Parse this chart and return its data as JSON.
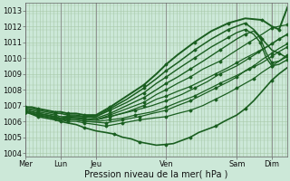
{
  "title": "",
  "xlabel": "Pression niveau de la mer( hPa )",
  "ylabel": "",
  "bg_color": "#cce8d8",
  "grid_color": "#a8c8a8",
  "line_color": "#1a5e20",
  "marker_color": "#1a5e20",
  "ylim": [
    1003.8,
    1013.5
  ],
  "xlim": [
    0.0,
    6.2
  ],
  "yticks": [
    1004,
    1005,
    1006,
    1007,
    1008,
    1009,
    1010,
    1011,
    1012,
    1013
  ],
  "xtick_positions": [
    0.0,
    0.83,
    1.67,
    3.33,
    5.0,
    5.83
  ],
  "xtick_labels": [
    "Mer",
    "Lun",
    "Jeu",
    "Ven",
    "Sam",
    "Dim"
  ],
  "lines": [
    {
      "x": [
        0.0,
        0.1,
        0.2,
        0.3,
        0.5,
        0.7,
        0.83,
        1.0,
        1.2,
        1.4,
        1.67,
        1.9,
        2.1,
        2.3,
        2.5,
        2.7,
        2.9,
        3.1,
        3.33,
        3.5,
        3.7,
        3.9,
        4.1,
        4.3,
        4.5,
        4.7,
        5.0,
        5.2,
        5.4,
        5.6,
        5.83,
        6.0,
        6.2
      ],
      "y": [
        1006.6,
        1006.5,
        1006.4,
        1006.3,
        1006.2,
        1006.1,
        1006.0,
        1005.9,
        1005.8,
        1005.6,
        1005.4,
        1005.3,
        1005.2,
        1005.0,
        1004.9,
        1004.7,
        1004.6,
        1004.5,
        1004.55,
        1004.6,
        1004.8,
        1005.0,
        1005.3,
        1005.5,
        1005.7,
        1006.0,
        1006.4,
        1006.8,
        1007.3,
        1007.9,
        1008.6,
        1009.0,
        1009.4
      ],
      "lw": 1.2
    },
    {
      "x": [
        0.0,
        0.15,
        0.3,
        0.5,
        0.7,
        0.83,
        1.0,
        1.2,
        1.4,
        1.67,
        1.9,
        2.1,
        2.3,
        2.5,
        2.7,
        3.0,
        3.33,
        3.6,
        3.9,
        4.2,
        4.5,
        4.8,
        5.0,
        5.2,
        5.4,
        5.6,
        5.83,
        6.0,
        6.2
      ],
      "y": [
        1006.6,
        1006.5,
        1006.4,
        1006.3,
        1006.2,
        1006.1,
        1006.0,
        1006.0,
        1005.9,
        1005.8,
        1005.7,
        1005.8,
        1005.9,
        1006.0,
        1006.1,
        1006.2,
        1006.3,
        1006.5,
        1006.7,
        1007.0,
        1007.4,
        1007.8,
        1008.1,
        1008.4,
        1008.7,
        1009.1,
        1009.5,
        1009.8,
        1010.1
      ],
      "lw": 0.9
    },
    {
      "x": [
        0.0,
        0.15,
        0.3,
        0.5,
        0.7,
        0.83,
        1.0,
        1.2,
        1.4,
        1.67,
        1.9,
        2.1,
        2.3,
        2.5,
        2.7,
        3.0,
        3.33,
        3.6,
        3.9,
        4.2,
        4.5,
        4.8,
        5.0,
        5.2,
        5.4,
        5.6,
        5.83,
        6.0,
        6.2
      ],
      "y": [
        1006.6,
        1006.5,
        1006.4,
        1006.3,
        1006.2,
        1006.1,
        1006.1,
        1006.1,
        1006.0,
        1005.95,
        1005.9,
        1006.0,
        1006.1,
        1006.2,
        1006.3,
        1006.5,
        1006.7,
        1007.0,
        1007.3,
        1007.7,
        1008.1,
        1008.5,
        1008.8,
        1009.2,
        1009.5,
        1009.9,
        1010.3,
        1010.6,
        1010.9
      ],
      "lw": 0.9
    },
    {
      "x": [
        0.0,
        0.15,
        0.3,
        0.5,
        0.7,
        0.83,
        1.0,
        1.2,
        1.4,
        1.67,
        2.0,
        2.3,
        2.6,
        3.0,
        3.33,
        3.7,
        4.0,
        4.3,
        4.6,
        5.0,
        5.3,
        5.6,
        5.83,
        6.0,
        6.2
      ],
      "y": [
        1006.6,
        1006.5,
        1006.4,
        1006.3,
        1006.2,
        1006.1,
        1006.1,
        1006.1,
        1006.0,
        1006.0,
        1006.1,
        1006.2,
        1006.4,
        1006.6,
        1006.9,
        1007.3,
        1007.6,
        1008.0,
        1008.4,
        1008.9,
        1009.3,
        1009.7,
        1010.1,
        1010.4,
        1010.7
      ],
      "lw": 0.9
    },
    {
      "x": [
        0.0,
        0.15,
        0.3,
        0.5,
        0.7,
        0.83,
        1.0,
        1.2,
        1.4,
        1.67,
        2.0,
        2.3,
        2.6,
        3.0,
        3.33,
        3.7,
        4.0,
        4.3,
        4.6,
        5.0,
        5.3,
        5.6,
        5.83,
        6.0,
        6.2
      ],
      "y": [
        1006.6,
        1006.5,
        1006.4,
        1006.3,
        1006.2,
        1006.1,
        1006.2,
        1006.2,
        1006.1,
        1006.1,
        1006.3,
        1006.5,
        1006.7,
        1007.0,
        1007.3,
        1007.7,
        1008.1,
        1008.5,
        1009.0,
        1009.5,
        1010.0,
        1010.5,
        1010.9,
        1011.2,
        1011.5
      ],
      "lw": 0.9
    },
    {
      "x": [
        0.0,
        0.15,
        0.3,
        0.5,
        0.7,
        0.83,
        1.0,
        1.2,
        1.4,
        1.67,
        2.0,
        2.4,
        2.8,
        3.1,
        3.33,
        3.6,
        3.9,
        4.2,
        4.5,
        4.8,
        5.0,
        5.2,
        5.5,
        5.83,
        6.0,
        6.2
      ],
      "y": [
        1006.7,
        1006.6,
        1006.5,
        1006.4,
        1006.3,
        1006.2,
        1006.2,
        1006.2,
        1006.1,
        1006.1,
        1006.3,
        1006.6,
        1007.0,
        1007.4,
        1007.6,
        1007.9,
        1008.2,
        1008.6,
        1009.0,
        1009.4,
        1009.7,
        1010.0,
        1010.4,
        1010.9,
        1011.2,
        1011.5
      ],
      "lw": 0.9
    },
    {
      "x": [
        0.0,
        0.15,
        0.3,
        0.5,
        0.7,
        0.83,
        1.0,
        1.2,
        1.4,
        1.67,
        2.0,
        2.4,
        2.8,
        3.1,
        3.33,
        3.6,
        3.9,
        4.2,
        4.6,
        5.0,
        5.3,
        5.6,
        5.83,
        6.0,
        6.2
      ],
      "y": [
        1006.7,
        1006.6,
        1006.5,
        1006.4,
        1006.3,
        1006.2,
        1006.3,
        1006.2,
        1006.2,
        1006.1,
        1006.4,
        1006.8,
        1007.2,
        1007.7,
        1008.0,
        1008.4,
        1008.8,
        1009.3,
        1009.8,
        1010.5,
        1011.0,
        1011.5,
        1011.9,
        1012.0,
        1012.1
      ],
      "lw": 0.9
    },
    {
      "x": [
        0.0,
        0.15,
        0.3,
        0.5,
        0.7,
        0.83,
        1.0,
        1.2,
        1.4,
        1.67,
        2.0,
        2.4,
        2.8,
        3.1,
        3.33,
        3.6,
        3.9,
        4.2,
        4.6,
        5.0,
        5.2,
        5.4,
        5.55,
        5.7,
        5.83,
        6.0,
        6.2
      ],
      "y": [
        1006.7,
        1006.6,
        1006.5,
        1006.4,
        1006.3,
        1006.2,
        1006.3,
        1006.3,
        1006.3,
        1006.2,
        1006.5,
        1007.0,
        1007.5,
        1008.0,
        1008.4,
        1008.8,
        1009.3,
        1009.8,
        1010.5,
        1011.2,
        1011.5,
        1011.7,
        1011.3,
        1010.3,
        1009.7,
        1009.8,
        1010.2
      ],
      "lw": 1.0
    },
    {
      "x": [
        0.0,
        0.15,
        0.3,
        0.5,
        0.7,
        0.83,
        1.0,
        1.2,
        1.4,
        1.67,
        2.0,
        2.4,
        2.8,
        3.1,
        3.33,
        3.6,
        4.0,
        4.4,
        4.8,
        5.0,
        5.2,
        5.4,
        5.55,
        5.7,
        5.83,
        6.0,
        6.2
      ],
      "y": [
        1006.8,
        1006.7,
        1006.6,
        1006.5,
        1006.4,
        1006.3,
        1006.3,
        1006.3,
        1006.3,
        1006.3,
        1006.7,
        1007.2,
        1007.8,
        1008.4,
        1008.8,
        1009.3,
        1010.0,
        1010.7,
        1011.3,
        1011.6,
        1011.8,
        1011.5,
        1011.0,
        1010.0,
        1009.5,
        1009.6,
        1009.9
      ],
      "lw": 1.0
    },
    {
      "x": [
        0.0,
        0.15,
        0.3,
        0.5,
        0.7,
        0.83,
        1.0,
        1.2,
        1.4,
        1.67,
        2.0,
        2.4,
        2.8,
        3.1,
        3.33,
        3.6,
        4.0,
        4.4,
        4.8,
        5.0,
        5.2,
        5.4,
        5.6,
        5.83,
        6.0,
        6.2
      ],
      "y": [
        1006.8,
        1006.8,
        1006.7,
        1006.6,
        1006.5,
        1006.5,
        1006.4,
        1006.4,
        1006.3,
        1006.3,
        1006.8,
        1007.4,
        1008.1,
        1008.7,
        1009.2,
        1009.7,
        1010.5,
        1011.2,
        1011.8,
        1012.0,
        1012.2,
        1011.8,
        1011.2,
        1010.5,
        1010.3,
        1010.0
      ],
      "lw": 1.1
    },
    {
      "x": [
        0.0,
        0.15,
        0.3,
        0.5,
        0.7,
        0.83,
        1.0,
        1.2,
        1.4,
        1.67,
        2.0,
        2.4,
        2.8,
        3.1,
        3.33,
        3.6,
        4.0,
        4.4,
        4.8,
        5.2,
        5.6,
        5.83,
        6.0,
        6.2
      ],
      "y": [
        1006.9,
        1006.9,
        1006.8,
        1006.7,
        1006.6,
        1006.6,
        1006.5,
        1006.5,
        1006.4,
        1006.4,
        1006.9,
        1007.6,
        1008.3,
        1009.0,
        1009.6,
        1010.2,
        1011.0,
        1011.7,
        1012.2,
        1012.5,
        1012.4,
        1012.0,
        1011.8,
        1013.2
      ],
      "lw": 1.4
    }
  ]
}
